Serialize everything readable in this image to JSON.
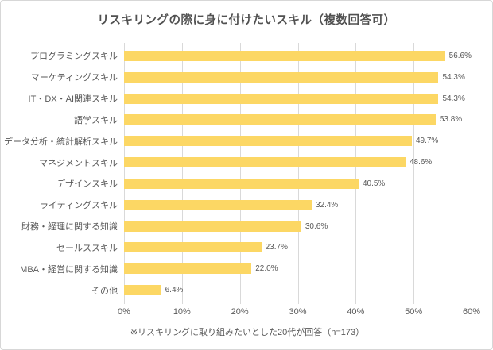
{
  "title": "リスキリングの際に身に付けたいスキル（複数回答可）",
  "footnote": "※リスキリングに取り組みたいとした20代が回答（n=173）",
  "colors": {
    "bar": "#FCD764",
    "grid": "#D9D9D9",
    "border": "#D7D7D7",
    "title_text": "#515151",
    "text": "#595959"
  },
  "chart_data": {
    "type": "bar",
    "orientation": "horizontal",
    "title": "リスキリングの際に身に付けたいスキル（複数回答可）",
    "categories": [
      "プログラミングスキル",
      "マーケティングスキル",
      "IT・DX・AI関連スキル",
      "語学スキル",
      "データ分析・統計解析スキル",
      "マネジメントスキル",
      "デザインスキル",
      "ライティングスキル",
      "財務・経理に関する知識",
      "セールススキル",
      "MBA・経営に関する知識",
      "その他"
    ],
    "values": [
      56.6,
      54.3,
      54.3,
      53.8,
      49.7,
      48.6,
      40.5,
      32.4,
      30.6,
      23.7,
      22.0,
      6.4
    ],
    "value_labels": [
      "56.6%",
      "54.3%",
      "54.3%",
      "53.8%",
      "49.7%",
      "48.6%",
      "40.5%",
      "32.4%",
      "30.6%",
      "23.7%",
      "22.0%",
      "6.4%"
    ],
    "xlabel": "",
    "ylabel": "",
    "xlim": [
      0,
      60
    ],
    "x_ticks": [
      "0%",
      "10%",
      "20%",
      "30%",
      "40%",
      "50%",
      "60%"
    ],
    "grid": true,
    "legend": "none",
    "bar_color": "#FCD764"
  }
}
